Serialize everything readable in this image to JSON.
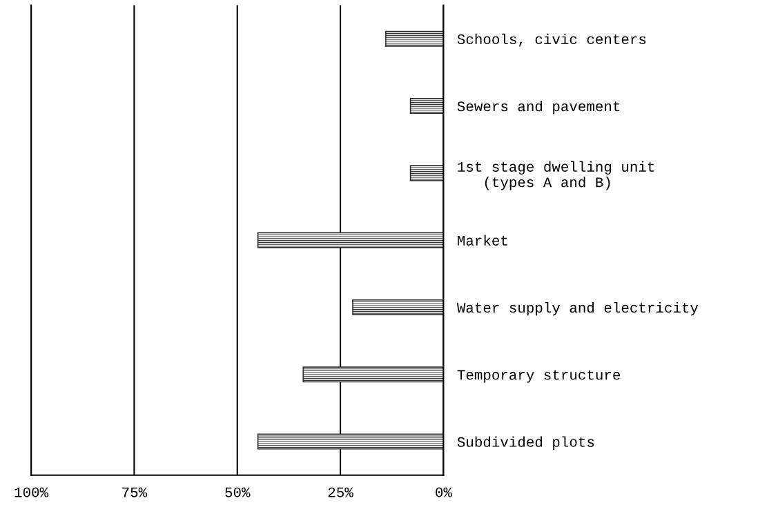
{
  "chart_data": {
    "type": "bar",
    "orientation": "horizontal",
    "categories": [
      "Schools, civic centers",
      "Sewers and pavement",
      "1st stage dwelling unit\n   (types A and B)",
      "Market",
      "Water supply and electricity",
      "Temporary structure",
      "Subdivided plots"
    ],
    "values": [
      14,
      8,
      8,
      45,
      22,
      34,
      45
    ],
    "color": "#333333",
    "xlim": [
      100,
      0
    ],
    "xticks": [
      {
        "value": 100,
        "label": "100%"
      },
      {
        "value": 75,
        "label": "75%"
      },
      {
        "value": 50,
        "label": "50%"
      },
      {
        "value": 25,
        "label": "25%"
      },
      {
        "value": 0,
        "label": "0%"
      }
    ],
    "grid": "x",
    "legend": false
  }
}
